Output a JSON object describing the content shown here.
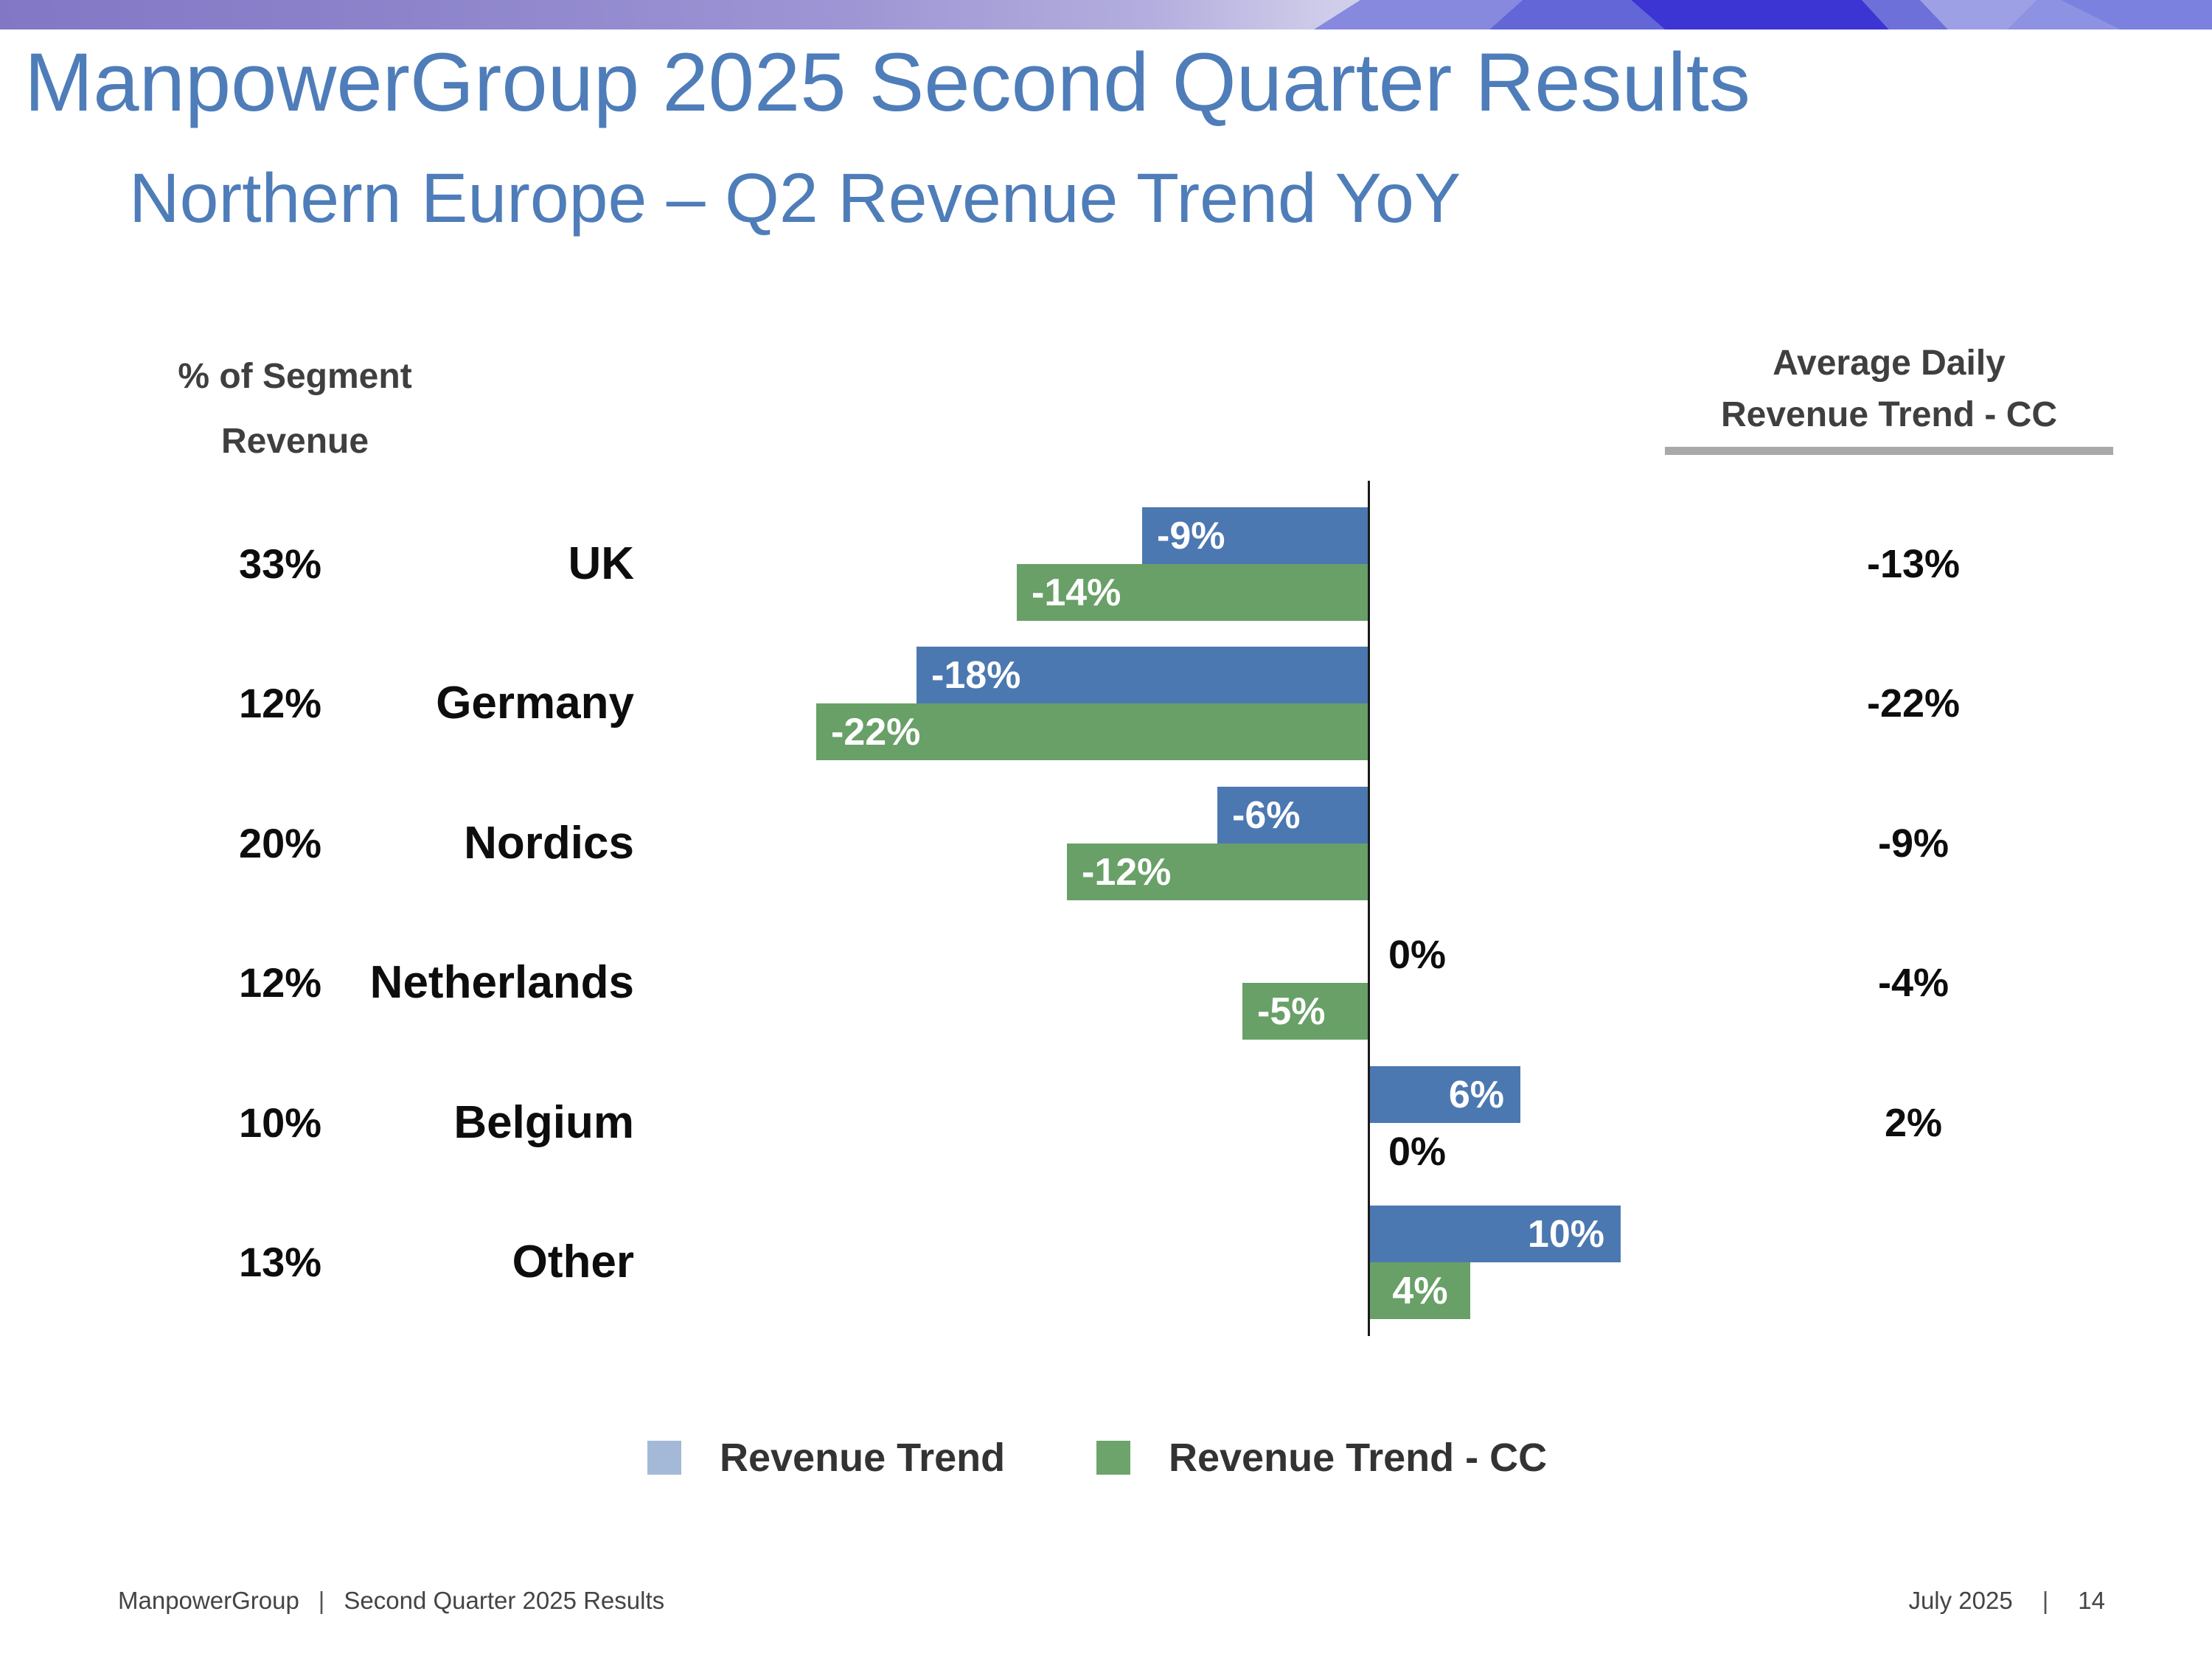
{
  "slide": {
    "title": "ManpowerGroup 2025 Second Quarter Results",
    "subtitle": "Northern Europe – Q2 Revenue Trend YoY",
    "footer_left": {
      "brand": "ManpowerGroup",
      "separator": "|",
      "text": "Second Quarter 2025 Results"
    },
    "footer_right": {
      "date": "July 2025",
      "separator": "|",
      "page": "14"
    }
  },
  "chart": {
    "left_header_line1": "% of Segment",
    "left_header_line2": "Revenue",
    "right_header_line1": "Average Daily",
    "right_header_line2": "Revenue Trend - CC",
    "legend": [
      {
        "label": "Revenue Trend",
        "color": "#a3b9d7"
      },
      {
        "label": "Revenue Trend - CC",
        "color": "#6da46b"
      }
    ],
    "colors": {
      "bar_blue": "#4c78b1",
      "bar_green": "#68a067",
      "title_blue": "#4e7db9",
      "header_text": "#3f3f3f",
      "axis": "#1a1a1a"
    },
    "rows": [
      {
        "country": "UK",
        "segment_share": "33%",
        "revenue_trend": -9,
        "revenue_trend_label": "-9%",
        "cc_trend": -14,
        "cc_trend_label": "-14%",
        "adr_cc": "-13%"
      },
      {
        "country": "Germany",
        "segment_share": "12%",
        "revenue_trend": -18,
        "revenue_trend_label": "-18%",
        "cc_trend": -22,
        "cc_trend_label": "-22%",
        "adr_cc": "-22%"
      },
      {
        "country": "Nordics",
        "segment_share": "20%",
        "revenue_trend": -6,
        "revenue_trend_label": "-6%",
        "cc_trend": -12,
        "cc_trend_label": "-12%",
        "adr_cc": "-9%"
      },
      {
        "country": "Netherlands",
        "segment_share": "12%",
        "revenue_trend": 0,
        "revenue_trend_label": "0%",
        "cc_trend": -5,
        "cc_trend_label": "-5%",
        "adr_cc": "-4%"
      },
      {
        "country": "Belgium",
        "segment_share": "10%",
        "revenue_trend": 6,
        "revenue_trend_label": "6%",
        "cc_trend": 0,
        "cc_trend_label": "0%",
        "adr_cc": "2%"
      },
      {
        "country": "Other",
        "segment_share": "13%",
        "revenue_trend": 10,
        "revenue_trend_label": "10%",
        "cc_trend": 4,
        "cc_trend_label": "4%",
        "adr_cc": ""
      }
    ]
  },
  "chart_data": {
    "type": "bar",
    "orientation": "horizontal",
    "title": "Northern Europe – Q2 Revenue Trend YoY",
    "categories": [
      "UK",
      "Germany",
      "Nordics",
      "Netherlands",
      "Belgium",
      "Other"
    ],
    "series": [
      {
        "name": "Revenue Trend",
        "values": [
          -9,
          -18,
          -6,
          0,
          6,
          10
        ]
      },
      {
        "name": "Revenue Trend - CC",
        "values": [
          -14,
          -22,
          -12,
          -5,
          0,
          4
        ]
      }
    ],
    "segment_share_pct": [
      33,
      12,
      20,
      12,
      10,
      13
    ],
    "average_daily_revenue_trend_cc_pct": [
      -13,
      -22,
      -9,
      -4,
      2,
      null
    ],
    "value_suffix": "%",
    "xlim": [
      -24,
      12
    ],
    "grid": false,
    "baseline": "vertical line at 0",
    "legend_position": "bottom"
  }
}
